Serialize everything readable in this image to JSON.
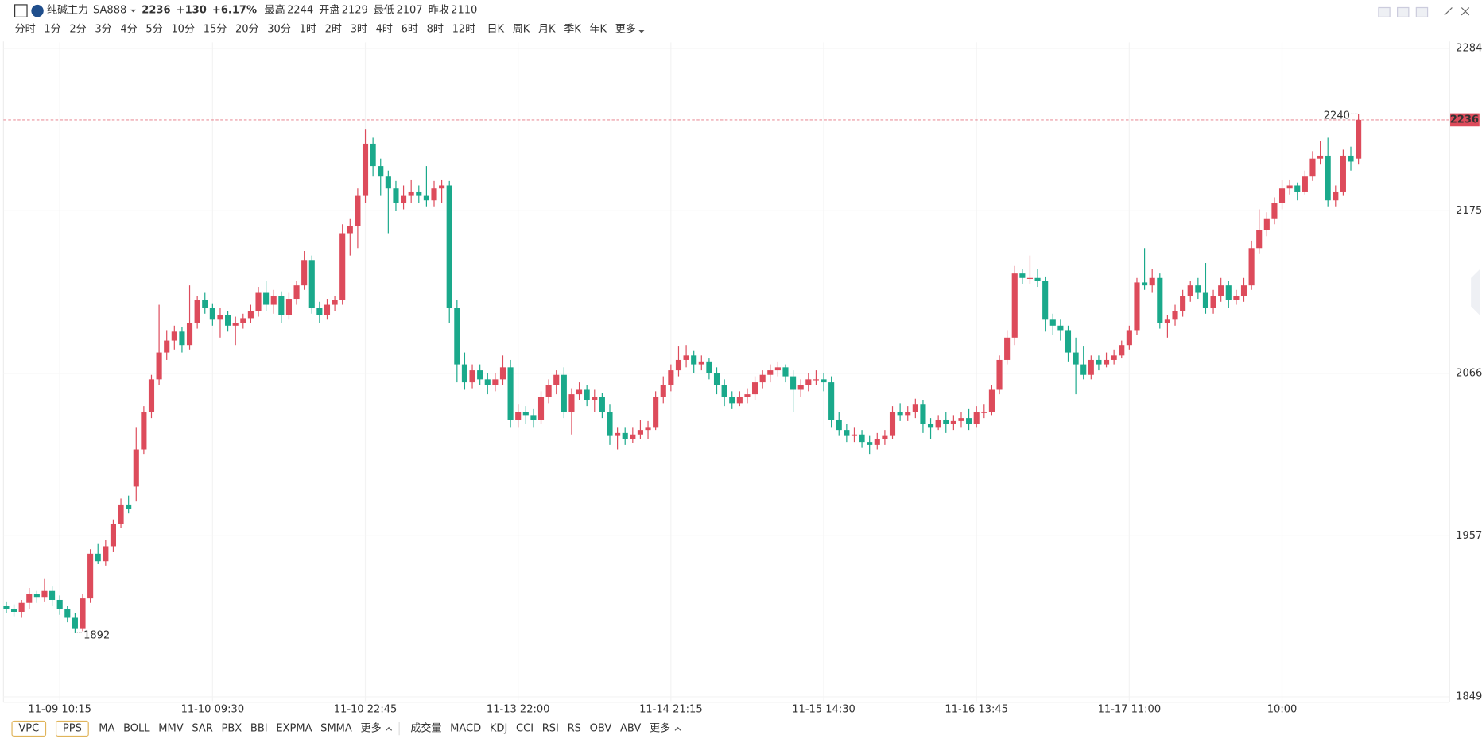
{
  "header": {
    "symbol_name": "纯碱主力",
    "symbol": "SA888",
    "price": 2236,
    "change": "+130",
    "change_pct": "+6.17%",
    "stats": [
      {
        "label": "最高",
        "value": 2244
      },
      {
        "label": "开盘",
        "value": 2129
      },
      {
        "label": "最低",
        "value": 2107
      },
      {
        "label": "昨收",
        "value": 2110
      }
    ]
  },
  "periods": [
    "分时",
    "1分",
    "2分",
    "3分",
    "4分",
    "5分",
    "10分",
    "15分",
    "20分",
    "30分",
    "1时",
    "2时",
    "3时",
    "4时",
    "6时",
    "8时",
    "12时",
    "日K",
    "周K",
    "月K",
    "季K",
    "年K",
    "更多"
  ],
  "active_period": "15分",
  "main_indicators": [
    "VPC",
    "PPS"
  ],
  "overlays": [
    "MA",
    "BOLL",
    "MMV",
    "SAR",
    "PBX",
    "BBI",
    "EXPMA",
    "SMMA",
    "更多"
  ],
  "sub_indicators": [
    "成交量",
    "MACD",
    "KDJ",
    "CCI",
    "RSI",
    "RS",
    "OBV",
    "ABV",
    "更多"
  ],
  "chart_data": {
    "type": "candlestick",
    "up_color": "#dd4b5b",
    "down_color": "#1aa98b",
    "grid": true,
    "ylim": [
      1846,
      2288
    ],
    "yticks": [
      1849,
      1957,
      2066,
      2175,
      2284
    ],
    "last_price": 2236,
    "max_label": 2240,
    "min_label": 1892,
    "categories": [
      null,
      null,
      null,
      null,
      null,
      null,
      null,
      "11-09 10:15",
      null,
      null,
      null,
      null,
      null,
      null,
      null,
      null,
      null,
      null,
      null,
      null,
      null,
      null,
      null,
      null,
      null,
      null,
      null,
      "11-10 09:30",
      null,
      null,
      null,
      null,
      null,
      null,
      null,
      null,
      null,
      null,
      null,
      null,
      null,
      null,
      null,
      null,
      null,
      null,
      null,
      "11-10 22:45",
      null,
      null,
      null,
      null,
      null,
      null,
      null,
      null,
      null,
      null,
      null,
      null,
      null,
      null,
      null,
      null,
      null,
      null,
      null,
      "11-13 22:00",
      null,
      null,
      null,
      null,
      null,
      null,
      null,
      null,
      null,
      null,
      null,
      null,
      null,
      null,
      null,
      null,
      null,
      null,
      null,
      "11-14 21:15",
      null,
      null,
      null,
      null,
      null,
      null,
      null,
      null,
      null,
      null,
      null,
      null,
      null,
      null,
      null,
      null,
      null,
      null,
      null,
      "11-15 14:30",
      null,
      null,
      null,
      null,
      null,
      null,
      null,
      null,
      null,
      null,
      null,
      null,
      null,
      null,
      null,
      null,
      null,
      null,
      null,
      "11-16 13:45",
      null,
      null,
      null,
      null,
      null,
      null,
      null,
      null,
      null,
      null,
      null,
      null,
      null,
      null,
      null,
      null,
      null,
      null,
      null,
      "11-17 11:00",
      null,
      null,
      null,
      null,
      null,
      null,
      null,
      null,
      null,
      null,
      null,
      null,
      null,
      null,
      null,
      null,
      null,
      null,
      null,
      "10:00",
      null,
      null,
      null,
      null,
      null,
      null,
      null,
      null,
      null,
      null
    ],
    "candles": [
      [
        1910,
        1913,
        1905,
        1908
      ],
      [
        1908,
        1911,
        1903,
        1906
      ],
      [
        1906,
        1914,
        1902,
        1912
      ],
      [
        1912,
        1922,
        1908,
        1918
      ],
      [
        1918,
        1920,
        1912,
        1916
      ],
      [
        1916,
        1928,
        1913,
        1920
      ],
      [
        1920,
        1923,
        1910,
        1914
      ],
      [
        1914,
        1917,
        1904,
        1908
      ],
      [
        1908,
        1910,
        1899,
        1902
      ],
      [
        1902,
        1905,
        1892,
        1895
      ],
      [
        1895,
        1918,
        1893,
        1915
      ],
      [
        1915,
        1948,
        1912,
        1945
      ],
      [
        1945,
        1952,
        1938,
        1940
      ],
      [
        1940,
        1954,
        1937,
        1950
      ],
      [
        1950,
        1968,
        1946,
        1965
      ],
      [
        1965,
        1982,
        1962,
        1978
      ],
      [
        1978,
        1984,
        1972,
        1975
      ],
      [
        1990,
        2030,
        1980,
        2015
      ],
      [
        2015,
        2044,
        2012,
        2040
      ],
      [
        2040,
        2065,
        2036,
        2062
      ],
      [
        2062,
        2112,
        2058,
        2080
      ],
      [
        2080,
        2095,
        2075,
        2088
      ],
      [
        2088,
        2098,
        2082,
        2094
      ],
      [
        2094,
        2097,
        2080,
        2085
      ],
      [
        2085,
        2125,
        2082,
        2100
      ],
      [
        2100,
        2118,
        2096,
        2115
      ],
      [
        2115,
        2120,
        2106,
        2110
      ],
      [
        2110,
        2113,
        2098,
        2102
      ],
      [
        2102,
        2110,
        2090,
        2105
      ],
      [
        2105,
        2108,
        2094,
        2098
      ],
      [
        2098,
        2104,
        2085,
        2100
      ],
      [
        2100,
        2106,
        2096,
        2103
      ],
      [
        2103,
        2112,
        2100,
        2108
      ],
      [
        2108,
        2124,
        2104,
        2120
      ],
      [
        2120,
        2128,
        2108,
        2112
      ],
      [
        2112,
        2122,
        2106,
        2118
      ],
      [
        2118,
        2121,
        2100,
        2105
      ],
      [
        2105,
        2120,
        2102,
        2116
      ],
      [
        2116,
        2128,
        2112,
        2125
      ],
      [
        2125,
        2148,
        2122,
        2142
      ],
      [
        2142,
        2145,
        2106,
        2110
      ],
      [
        2110,
        2114,
        2100,
        2105
      ],
      [
        2105,
        2116,
        2102,
        2112
      ],
      [
        2112,
        2118,
        2108,
        2115
      ],
      [
        2115,
        2166,
        2112,
        2160
      ],
      [
        2160,
        2170,
        2145,
        2165
      ],
      [
        2165,
        2190,
        2150,
        2185
      ],
      [
        2185,
        2230,
        2180,
        2220
      ],
      [
        2220,
        2224,
        2198,
        2205
      ],
      [
        2205,
        2210,
        2185,
        2198
      ],
      [
        2198,
        2202,
        2160,
        2190
      ],
      [
        2190,
        2195,
        2175,
        2180
      ],
      [
        2180,
        2192,
        2176,
        2185
      ],
      [
        2185,
        2196,
        2180,
        2188
      ],
      [
        2188,
        2192,
        2180,
        2185
      ],
      [
        2185,
        2205,
        2178,
        2182
      ],
      [
        2182,
        2195,
        2178,
        2190
      ],
      [
        2190,
        2196,
        2180,
        2192
      ],
      [
        2192,
        2195,
        2100,
        2110
      ],
      [
        2110,
        2115,
        2060,
        2072
      ],
      [
        2072,
        2080,
        2055,
        2060
      ],
      [
        2060,
        2072,
        2056,
        2068
      ],
      [
        2068,
        2072,
        2058,
        2062
      ],
      [
        2062,
        2066,
        2052,
        2058
      ],
      [
        2058,
        2066,
        2054,
        2062
      ],
      [
        2062,
        2078,
        2058,
        2070
      ],
      [
        2070,
        2075,
        2030,
        2035
      ],
      [
        2035,
        2045,
        2030,
        2040
      ],
      [
        2040,
        2044,
        2032,
        2038
      ],
      [
        2038,
        2042,
        2030,
        2035
      ],
      [
        2035,
        2054,
        2032,
        2050
      ],
      [
        2050,
        2062,
        2046,
        2058
      ],
      [
        2058,
        2068,
        2052,
        2065
      ],
      [
        2065,
        2070,
        2036,
        2040
      ],
      [
        2040,
        2056,
        2025,
        2052
      ],
      [
        2052,
        2060,
        2048,
        2055
      ],
      [
        2055,
        2058,
        2044,
        2048
      ],
      [
        2048,
        2055,
        2040,
        2050
      ],
      [
        2050,
        2053,
        2036,
        2040
      ],
      [
        2040,
        2045,
        2018,
        2024
      ],
      [
        2024,
        2030,
        2015,
        2026
      ],
      [
        2026,
        2030,
        2018,
        2022
      ],
      [
        2022,
        2030,
        2019,
        2025
      ],
      [
        2025,
        2035,
        2022,
        2028
      ],
      [
        2028,
        2034,
        2022,
        2030
      ],
      [
        2030,
        2054,
        2028,
        2050
      ],
      [
        2050,
        2064,
        2046,
        2058
      ],
      [
        2058,
        2072,
        2054,
        2068
      ],
      [
        2068,
        2084,
        2064,
        2075
      ],
      [
        2075,
        2085,
        2070,
        2078
      ],
      [
        2078,
        2081,
        2066,
        2072
      ],
      [
        2072,
        2078,
        2068,
        2074
      ],
      [
        2074,
        2076,
        2062,
        2066
      ],
      [
        2066,
        2070,
        2052,
        2058
      ],
      [
        2058,
        2062,
        2044,
        2050
      ],
      [
        2050,
        2054,
        2042,
        2046
      ],
      [
        2046,
        2054,
        2044,
        2050
      ],
      [
        2050,
        2056,
        2046,
        2052
      ],
      [
        2052,
        2064,
        2048,
        2060
      ],
      [
        2060,
        2068,
        2056,
        2065
      ],
      [
        2065,
        2072,
        2060,
        2068
      ],
      [
        2068,
        2074,
        2064,
        2070
      ],
      [
        2070,
        2072,
        2060,
        2064
      ],
      [
        2064,
        2068,
        2040,
        2055
      ],
      [
        2055,
        2062,
        2050,
        2058
      ],
      [
        2058,
        2066,
        2054,
        2062
      ],
      [
        2062,
        2068,
        2058,
        2062
      ],
      [
        2062,
        2066,
        2054,
        2060
      ],
      [
        2060,
        2064,
        2030,
        2035
      ],
      [
        2035,
        2040,
        2024,
        2028
      ],
      [
        2028,
        2032,
        2020,
        2024
      ],
      [
        2024,
        2030,
        2020,
        2025
      ],
      [
        2025,
        2028,
        2016,
        2020
      ],
      [
        2020,
        2024,
        2012,
        2018
      ],
      [
        2018,
        2026,
        2015,
        2022
      ],
      [
        2022,
        2028,
        2018,
        2024
      ],
      [
        2024,
        2044,
        2022,
        2040
      ],
      [
        2040,
        2046,
        2034,
        2038
      ],
      [
        2038,
        2044,
        2034,
        2040
      ],
      [
        2040,
        2049,
        2036,
        2045
      ],
      [
        2045,
        2048,
        2026,
        2032
      ],
      [
        2032,
        2036,
        2022,
        2030
      ],
      [
        2030,
        2038,
        2028,
        2035
      ],
      [
        2035,
        2040,
        2026,
        2032
      ],
      [
        2032,
        2038,
        2028,
        2034
      ],
      [
        2034,
        2040,
        2030,
        2036
      ],
      [
        2036,
        2042,
        2028,
        2032
      ],
      [
        2032,
        2044,
        2030,
        2040
      ],
      [
        2040,
        2045,
        2036,
        2040
      ],
      [
        2040,
        2058,
        2038,
        2055
      ],
      [
        2055,
        2078,
        2052,
        2075
      ],
      [
        2075,
        2095,
        2072,
        2090
      ],
      [
        2090,
        2138,
        2085,
        2133
      ],
      [
        2133,
        2136,
        2126,
        2130
      ],
      [
        2130,
        2145,
        2126,
        2130
      ],
      [
        2130,
        2136,
        2124,
        2128
      ],
      [
        2128,
        2131,
        2094,
        2102
      ],
      [
        2102,
        2106,
        2092,
        2098
      ],
      [
        2098,
        2102,
        2088,
        2095
      ],
      [
        2095,
        2098,
        2074,
        2080
      ],
      [
        2080,
        2090,
        2052,
        2072
      ],
      [
        2072,
        2084,
        2062,
        2065
      ],
      [
        2065,
        2078,
        2062,
        2075
      ],
      [
        2075,
        2078,
        2068,
        2072
      ],
      [
        2072,
        2080,
        2070,
        2075
      ],
      [
        2075,
        2082,
        2072,
        2078
      ],
      [
        2078,
        2088,
        2076,
        2085
      ],
      [
        2085,
        2098,
        2082,
        2095
      ],
      [
        2095,
        2130,
        2092,
        2127
      ],
      [
        2127,
        2150,
        2122,
        2125
      ],
      [
        2125,
        2136,
        2120,
        2130
      ],
      [
        2130,
        2133,
        2096,
        2100
      ],
      [
        2100,
        2105,
        2090,
        2102
      ],
      [
        2102,
        2112,
        2098,
        2108
      ],
      [
        2108,
        2122,
        2104,
        2118
      ],
      [
        2118,
        2128,
        2114,
        2125
      ],
      [
        2125,
        2130,
        2116,
        2120
      ],
      [
        2120,
        2140,
        2106,
        2110
      ],
      [
        2110,
        2122,
        2106,
        2118
      ],
      [
        2118,
        2130,
        2114,
        2125
      ],
      [
        2125,
        2128,
        2110,
        2115
      ],
      [
        2115,
        2122,
        2112,
        2118
      ],
      [
        2118,
        2130,
        2114,
        2125
      ],
      [
        2125,
        2155,
        2122,
        2150
      ],
      [
        2150,
        2176,
        2146,
        2162
      ],
      [
        2162,
        2174,
        2158,
        2170
      ],
      [
        2170,
        2184,
        2166,
        2180
      ],
      [
        2180,
        2196,
        2176,
        2190
      ],
      [
        2190,
        2196,
        2186,
        2192
      ],
      [
        2192,
        2194,
        2182,
        2188
      ],
      [
        2188,
        2202,
        2186,
        2198
      ],
      [
        2198,
        2215,
        2195,
        2210
      ],
      [
        2210,
        2222,
        2206,
        2212
      ],
      [
        2212,
        2224,
        2178,
        2182
      ],
      [
        2182,
        2192,
        2178,
        2188
      ],
      [
        2188,
        2216,
        2185,
        2212
      ],
      [
        2212,
        2218,
        2202,
        2208
      ],
      [
        2210,
        2240,
        2206,
        2236
      ]
    ]
  }
}
